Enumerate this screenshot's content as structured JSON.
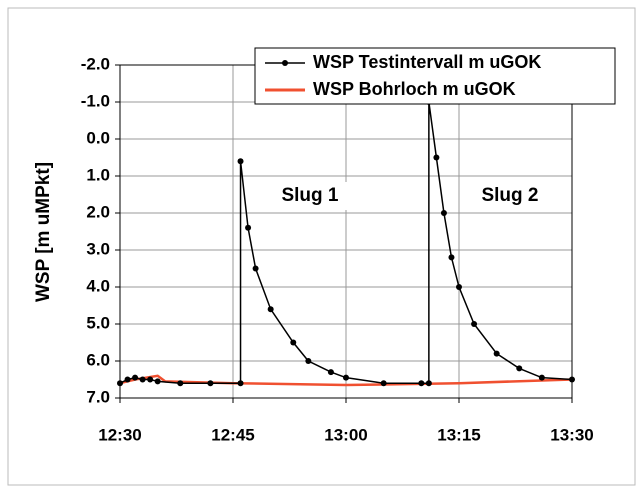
{
  "chart_data": {
    "type": "line",
    "ylabel": "WSP [m uMPkt]",
    "xlim": [
      "12:30",
      "13:30"
    ],
    "xticks": [
      "12:30",
      "12:45",
      "13:00",
      "13:15",
      "13:30"
    ],
    "ylim": [
      -2,
      7
    ],
    "yaxis_inverted": true,
    "yticks": [
      {
        "value": -2,
        "label": "-2.0"
      },
      {
        "value": -1,
        "label": "-1.0"
      },
      {
        "value": 0,
        "label": "0.0"
      },
      {
        "value": 1,
        "label": "1.0"
      },
      {
        "value": 2,
        "label": "2.0"
      },
      {
        "value": 3,
        "label": "3.0"
      },
      {
        "value": 4,
        "label": "4.0"
      },
      {
        "value": 5,
        "label": "5.0"
      },
      {
        "value": 6,
        "label": "6.0"
      },
      {
        "value": 7,
        "label": "7.0"
      }
    ],
    "grid": true,
    "legend": "upper right",
    "annotations": [
      "Slug 1",
      "Slug 2"
    ],
    "series": [
      {
        "name": "WSP Testintervall m uGOK",
        "color": "#000000",
        "markers": true,
        "x": [
          "12:30",
          "12:31",
          "12:32",
          "12:33",
          "12:34",
          "12:35",
          "12:38",
          "12:42",
          "12:46",
          "12:46",
          "12:47",
          "12:48",
          "12:50",
          "12:53",
          "12:55",
          "12:58",
          "13:00",
          "13:05",
          "13:10",
          "13:11",
          "13:11",
          "13:12",
          "13:13",
          "13:14",
          "13:15",
          "13:17",
          "13:20",
          "13:23",
          "13:26",
          "13:30"
        ],
        "values": [
          6.6,
          6.5,
          6.45,
          6.5,
          6.5,
          6.55,
          6.6,
          6.6,
          6.6,
          0.6,
          2.4,
          3.5,
          4.6,
          5.5,
          6.0,
          6.3,
          6.45,
          6.6,
          6.6,
          6.6,
          -1.0,
          0.5,
          2.0,
          3.2,
          4.0,
          5.0,
          5.8,
          6.2,
          6.45,
          6.5
        ]
      },
      {
        "name": "WSP Bohrloch m uGOK",
        "color": "#f05030",
        "markers": false,
        "x": [
          "12:30",
          "12:32",
          "12:35",
          "12:36",
          "12:45",
          "13:00",
          "13:15",
          "13:30"
        ],
        "values": [
          6.6,
          6.5,
          6.4,
          6.55,
          6.6,
          6.65,
          6.6,
          6.5
        ]
      }
    ]
  }
}
